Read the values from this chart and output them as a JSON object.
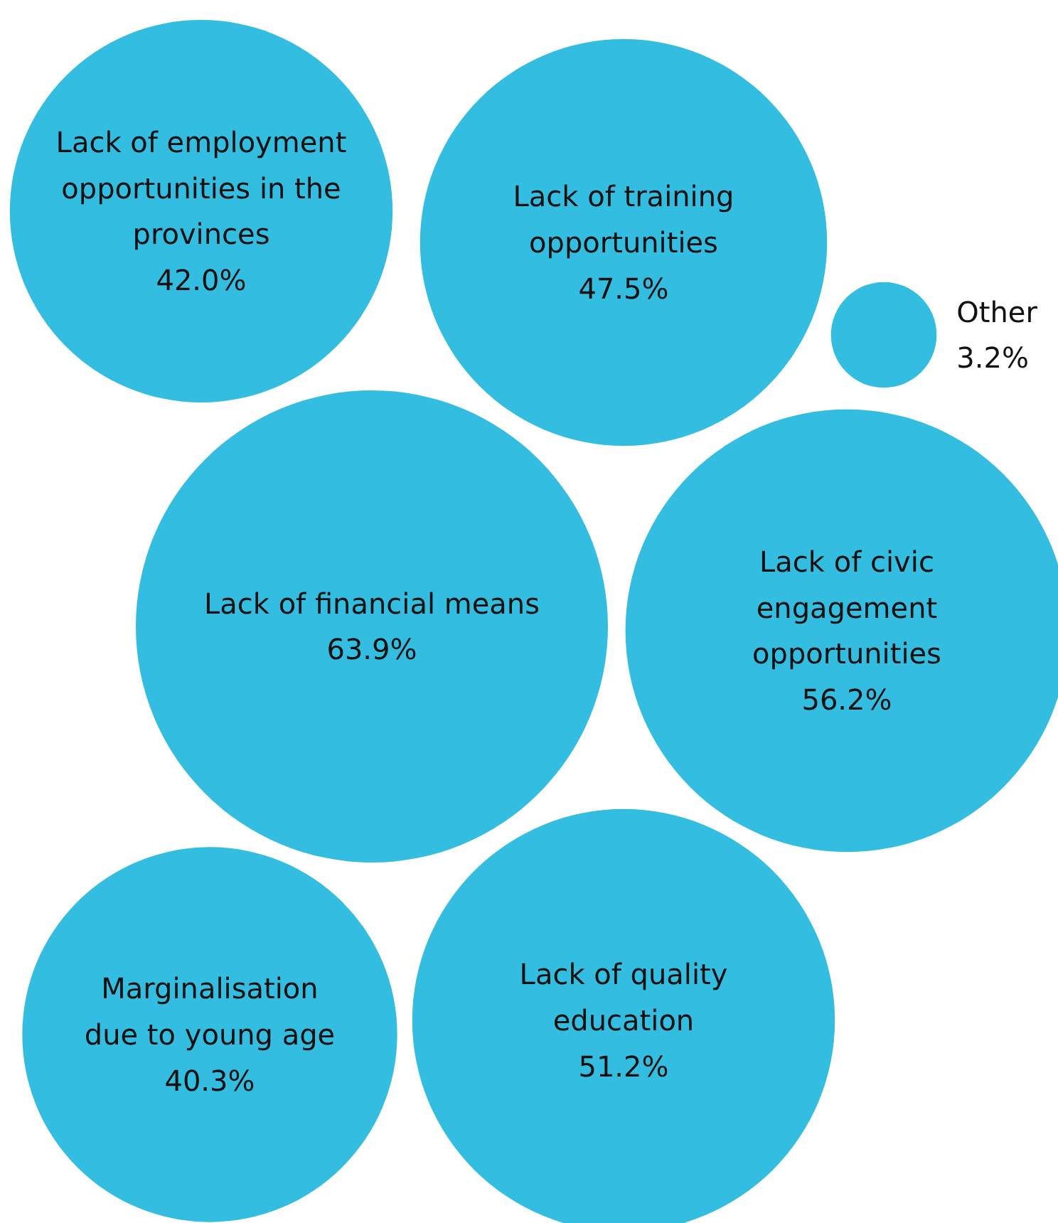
{
  "chart_data": {
    "type": "other",
    "categories": [
      "Lack of employment opportunities in the provinces",
      "Lack of training opportunities",
      "Other",
      "Lack of financial means",
      "Lack of civic engagement opportunities",
      "Marginalisation due to young age",
      "Lack of quality education"
    ],
    "values": [
      42.0,
      47.5,
      3.2,
      63.9,
      56.2,
      40.3,
      51.2
    ],
    "value_labels": [
      "42.0%",
      "47.5%",
      "3.2%",
      "63.9%",
      "56.2%",
      "40.3%",
      "51.2%"
    ],
    "color": "#33bde0"
  }
}
